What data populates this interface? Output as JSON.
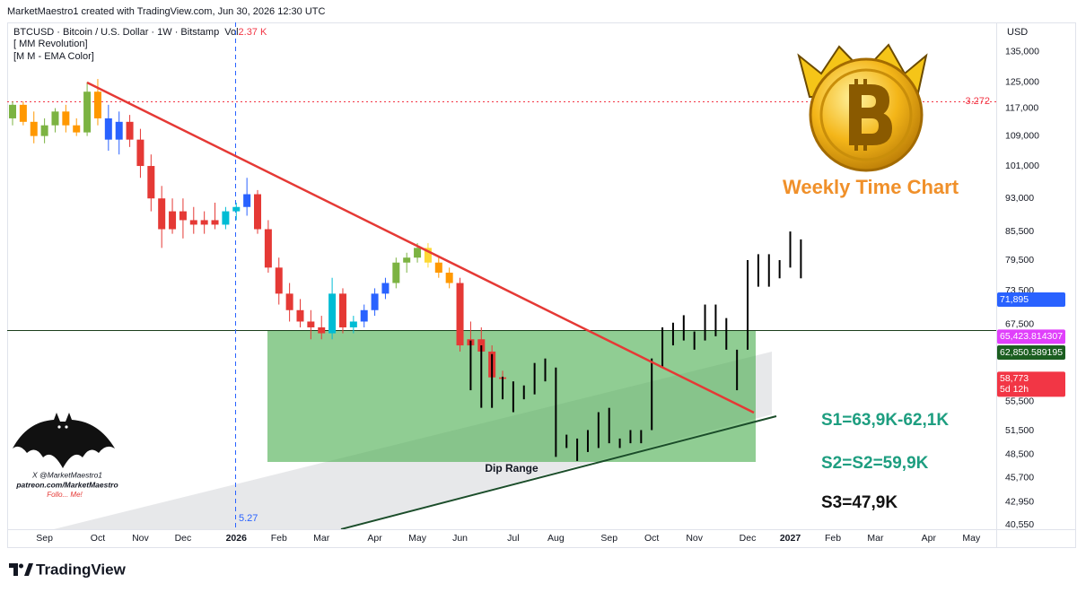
{
  "header": "MarketMaestro1 created with TradingView.com, Jun 30, 2026 12:30 UTC",
  "chart_data": {
    "type": "candlestick",
    "title": "BTCUSD · Bitcoin / U.S. Dollar · 1W · Bitstamp",
    "volume": {
      "label": "Vol",
      "value": "2.37 K"
    },
    "indicators": [
      "[ MM Revolution]",
      "[M M - EMA Color]"
    ],
    "y_axis_unit": "USD",
    "log_scale": true,
    "grid": false,
    "ylim": [
      40100,
      145500
    ],
    "yticks": [
      {
        "value": 135000,
        "label": "135,000"
      },
      {
        "value": 125000,
        "label": "125,000"
      },
      {
        "value": 117000,
        "label": "117,000"
      },
      {
        "value": 109000,
        "label": "109,000"
      },
      {
        "value": 101000,
        "label": "101,000"
      },
      {
        "value": 93000,
        "label": "93,000"
      },
      {
        "value": 85500,
        "label": "85,500"
      },
      {
        "value": 79500,
        "label": "79,500"
      },
      {
        "value": 73500,
        "label": "73,500"
      },
      {
        "value": 67500,
        "label": "67,500"
      },
      {
        "value": 55500,
        "label": "55,500"
      },
      {
        "value": 51500,
        "label": "51,500"
      },
      {
        "value": 48500,
        "label": "48,500"
      },
      {
        "value": 45700,
        "label": "45,700"
      },
      {
        "value": 42950,
        "label": "42,950"
      },
      {
        "value": 40550,
        "label": "40,550"
      }
    ],
    "categories": [
      null,
      null,
      null,
      "Sep",
      null,
      null,
      null,
      null,
      "Oct",
      null,
      null,
      null,
      "Nov",
      null,
      null,
      null,
      "Dec",
      null,
      null,
      null,
      null,
      "2026",
      null,
      null,
      null,
      "Feb",
      null,
      null,
      null,
      "Mar",
      null,
      null,
      null,
      null,
      "Apr",
      null,
      null,
      null,
      "May",
      null,
      null,
      null,
      "Jun",
      null,
      null,
      null,
      null,
      "Jul",
      null,
      null,
      null,
      "Aug",
      null,
      null,
      null,
      null,
      "Sep",
      null,
      null,
      null,
      "Oct",
      null,
      null,
      null,
      "Nov",
      null,
      null,
      null,
      null,
      "Dec",
      null,
      null,
      null,
      "2027",
      null,
      null,
      null,
      "Feb",
      null,
      null,
      null,
      "Mar",
      null,
      null,
      null,
      null,
      "Apr",
      null,
      null,
      null,
      "May",
      null,
      null
    ],
    "candles": {
      "open": [
        114000,
        118000,
        113000,
        109000,
        112000,
        116000,
        112000,
        110000,
        122000,
        114000,
        108000,
        113000,
        108000,
        101000,
        93000,
        86000,
        90000,
        88000,
        87000,
        88000,
        87000,
        90000,
        91000,
        94000,
        86000,
        78000,
        73000,
        70000,
        68000,
        67000,
        66000,
        73000,
        67000,
        68000,
        70000,
        73000,
        75000,
        79000,
        80000,
        82000,
        79000,
        77000,
        75000,
        64000,
        65000,
        63000,
        59000,
        null,
        null,
        null,
        null,
        null,
        null,
        null,
        null,
        null,
        null,
        null,
        null,
        null,
        null,
        null,
        null,
        null,
        null,
        null,
        null,
        null,
        null,
        null,
        null,
        null,
        null,
        null,
        null,
        null,
        null,
        null,
        null,
        null,
        null,
        null,
        null,
        null,
        null,
        null,
        null,
        null,
        null,
        null,
        null,
        null,
        null
      ],
      "high": [
        119000,
        119000,
        116000,
        114000,
        117000,
        118000,
        114000,
        125000,
        126000,
        118000,
        116000,
        115000,
        111000,
        104000,
        96000,
        93000,
        93000,
        91000,
        90000,
        92000,
        91000,
        92000,
        98000,
        95000,
        88000,
        80000,
        75000,
        72000,
        70000,
        69000,
        76000,
        74000,
        69000,
        71000,
        74000,
        76000,
        80000,
        81000,
        83000,
        83000,
        80000,
        78000,
        76000,
        68000,
        67000,
        64000,
        60000,
        null,
        null,
        null,
        null,
        null,
        null,
        null,
        null,
        null,
        null,
        null,
        null,
        null,
        null,
        null,
        null,
        null,
        null,
        null,
        null,
        null,
        null,
        null,
        null,
        null,
        null,
        null,
        null,
        null,
        null,
        null,
        null,
        null,
        null,
        null,
        null,
        null,
        null,
        null,
        null,
        null,
        null,
        null,
        null,
        null,
        null
      ],
      "low": [
        112000,
        112000,
        107000,
        107000,
        110000,
        110000,
        109000,
        109000,
        112000,
        105000,
        104000,
        106000,
        98000,
        90000,
        82000,
        85000,
        84000,
        85000,
        85000,
        86000,
        86000,
        88000,
        89000,
        85000,
        77000,
        71000,
        68000,
        67000,
        65000,
        65000,
        65000,
        66000,
        66000,
        67000,
        69000,
        72000,
        74000,
        77000,
        79000,
        78000,
        76000,
        74000,
        63000,
        62000,
        62000,
        58000,
        58000,
        null,
        null,
        null,
        null,
        null,
        null,
        null,
        null,
        null,
        null,
        null,
        null,
        null,
        null,
        null,
        null,
        null,
        null,
        null,
        null,
        null,
        null,
        null,
        null,
        null,
        null,
        null,
        null,
        null,
        null,
        null,
        null,
        null,
        null,
        null,
        null,
        null,
        null,
        null,
        null,
        null,
        null,
        null,
        null,
        null,
        null
      ],
      "close": [
        118000,
        113000,
        109000,
        112000,
        116000,
        112000,
        110000,
        122000,
        114000,
        108000,
        113000,
        108000,
        101000,
        93000,
        86000,
        90000,
        88000,
        87000,
        88000,
        87000,
        90000,
        91000,
        94000,
        86000,
        78000,
        73000,
        70000,
        68000,
        67000,
        66000,
        73000,
        67000,
        68000,
        70000,
        73000,
        75000,
        79000,
        80000,
        82000,
        79000,
        77000,
        75000,
        64000,
        65000,
        63000,
        59000,
        58773,
        null,
        null,
        null,
        null,
        null,
        null,
        null,
        null,
        null,
        null,
        null,
        null,
        null,
        null,
        null,
        null,
        null,
        null,
        null,
        null,
        null,
        null,
        null,
        null,
        null,
        null,
        null,
        null,
        null,
        null,
        null,
        null,
        null,
        null,
        null,
        null,
        null,
        null,
        null,
        null,
        null,
        null,
        null,
        null,
        null,
        null
      ],
      "colors": [
        "#7cb342",
        "#ff9800",
        "#ff9800",
        "#7cb342",
        "#7cb342",
        "#ff9800",
        "#ff9800",
        "#7cb342",
        "#ff9800",
        "#2962ff",
        "#2962ff",
        "#e53935",
        "#e53935",
        "#e53935",
        "#e53935",
        "#e53935",
        "#e53935",
        "#e53935",
        "#e53935",
        "#e53935",
        "#00bcd4",
        "#00bcd4",
        "#2962ff",
        "#e53935",
        "#e53935",
        "#e53935",
        "#e53935",
        "#e53935",
        "#e53935",
        "#e53935",
        "#00bcd4",
        "#e53935",
        "#00bcd4",
        "#2962ff",
        "#2962ff",
        "#2962ff",
        "#7cb342",
        "#7cb342",
        "#7cb342",
        "#fdd835",
        "#ff9800",
        "#ff9800",
        "#e53935",
        "#e53935",
        "#e53935",
        "#e53935",
        "#e53935",
        null,
        null,
        null,
        null,
        null,
        null,
        null,
        null,
        null,
        null,
        null,
        null,
        null,
        null,
        null,
        null,
        null,
        null,
        null,
        null,
        null,
        null,
        null,
        null,
        null,
        null,
        null,
        null,
        null,
        null,
        null,
        null,
        null,
        null,
        null,
        null,
        null,
        null,
        null,
        null,
        null,
        null,
        null,
        null,
        null,
        null
      ]
    },
    "projection": {
      "color": "#000000",
      "high": [
        null,
        null,
        null,
        null,
        null,
        null,
        null,
        null,
        null,
        null,
        null,
        null,
        null,
        null,
        null,
        null,
        null,
        null,
        null,
        null,
        null,
        null,
        null,
        null,
        null,
        null,
        null,
        null,
        null,
        null,
        null,
        null,
        null,
        null,
        null,
        null,
        null,
        null,
        null,
        null,
        null,
        null,
        null,
        64800,
        64000,
        62600,
        59100,
        58400,
        57800,
        61200,
        61900,
        60500,
        51000,
        50500,
        51600,
        54000,
        54600,
        50500,
        51600,
        51600,
        61900,
        67000,
        67800,
        69100,
        66300,
        71000,
        71000,
        68600,
        63300,
        79500,
        80700,
        80700,
        79500,
        85500,
        83800,
        null,
        null,
        null,
        null,
        null,
        null,
        null,
        null,
        null,
        null,
        null,
        null,
        null,
        null,
        null,
        null,
        null,
        null
      ],
      "low": [
        null,
        null,
        null,
        null,
        null,
        null,
        null,
        null,
        null,
        null,
        null,
        null,
        null,
        null,
        null,
        null,
        null,
        null,
        null,
        null,
        null,
        null,
        null,
        null,
        null,
        null,
        null,
        null,
        null,
        null,
        null,
        null,
        null,
        null,
        null,
        null,
        null,
        null,
        null,
        null,
        null,
        null,
        null,
        57100,
        54600,
        54600,
        55800,
        54000,
        55800,
        56500,
        58400,
        48200,
        49300,
        47700,
        48800,
        49300,
        49900,
        49300,
        49900,
        49900,
        51600,
        60500,
        64000,
        64800,
        63300,
        64800,
        65500,
        63300,
        57100,
        63300,
        74300,
        74300,
        75900,
        78000,
        75900,
        null,
        null,
        null,
        null,
        null,
        null,
        null,
        null,
        null,
        null,
        null,
        null,
        null,
        null,
        null,
        null,
        null,
        null
      ]
    },
    "price_labels": [
      {
        "value": 71895,
        "label": "71,895",
        "color": "#2962ff"
      },
      {
        "value": 65423.814307,
        "label": "65,423.814307",
        "color": "#e040fb"
      },
      {
        "value": 62850.589195,
        "label": "62,850.589195",
        "color": "#1b5e20"
      },
      {
        "value": 58773,
        "label": "58,773",
        "sublabel": "5d 12h",
        "color": "#f23645"
      }
    ],
    "annotations": {
      "fib_level": "3.272",
      "time_marker": "5.27",
      "dip_range": "Dip Range",
      "headline": "Weekly Time Chart",
      "supports": [
        "S1=63,9K-62,1K",
        "S2=S2=59,9K",
        "S3=47,9K"
      ]
    }
  },
  "watermark": {
    "handle": "X @MarketMaestro1",
    "site": "patreon.com/MarketMaestro",
    "note": "Follo... Me!"
  },
  "footer": "TradingView"
}
